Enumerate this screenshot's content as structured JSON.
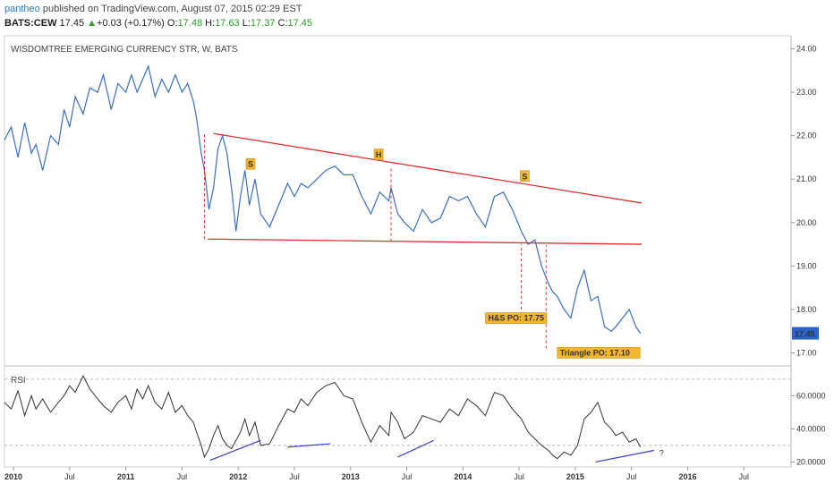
{
  "header": {
    "user": "pantheo",
    "published_text": "published on TradingView.com, August 07, 2015 02:29 EST",
    "symbol": "BATS:CEW",
    "last": "17.45",
    "change": "+0.03 (+0.17%)",
    "open_label": "O:",
    "open": "17.48",
    "high_label": "H:",
    "high": "17.63",
    "low_label": "L:",
    "low": "17.37",
    "close_label": "C:",
    "close": "17.45",
    "up_arrow_icon": "up-triangle-icon",
    "up_color": "#2a9d2a"
  },
  "chart_data": {
    "type": "line",
    "title": "WISDOMTREE EMERGING CURRENCY STR, W, BATS",
    "price_axis": {
      "ticks": [
        "24.00",
        "23.00",
        "22.00",
        "21.00",
        "20.00",
        "19.00",
        "18.00",
        "17.00"
      ],
      "ylim": [
        16.7,
        24.3
      ]
    },
    "last_price_badge": "17.45",
    "time_axis": {
      "labels": [
        {
          "t": 2010.0,
          "label": "2010"
        },
        {
          "t": 2010.5,
          "label": "Jul"
        },
        {
          "t": 2011.0,
          "label": "2011"
        },
        {
          "t": 2011.5,
          "label": "Jul"
        },
        {
          "t": 2012.0,
          "label": "2012"
        },
        {
          "t": 2012.5,
          "label": "Jul"
        },
        {
          "t": 2013.0,
          "label": "2013"
        },
        {
          "t": 2013.5,
          "label": "Jul"
        },
        {
          "t": 2014.0,
          "label": "2014"
        },
        {
          "t": 2014.5,
          "label": "Jul"
        },
        {
          "t": 2015.0,
          "label": "2015"
        },
        {
          "t": 2015.5,
          "label": "Jul"
        },
        {
          "t": 2016.0,
          "label": "2016"
        },
        {
          "t": 2016.5,
          "label": "Jul"
        }
      ],
      "xlim": [
        2009.92,
        2016.92
      ]
    },
    "price_series": {
      "color": "#3a6fc4",
      "t": [
        2009.92,
        2009.98,
        2010.04,
        2010.1,
        2010.16,
        2010.2,
        2010.26,
        2010.33,
        2010.4,
        2010.45,
        2010.5,
        2010.55,
        2010.62,
        2010.68,
        2010.75,
        2010.8,
        2010.87,
        2010.93,
        2011.0,
        2011.05,
        2011.1,
        2011.15,
        2011.2,
        2011.26,
        2011.32,
        2011.38,
        2011.44,
        2011.5,
        2011.55,
        2011.6,
        2011.63,
        2011.67,
        2011.7,
        2011.74,
        2011.78,
        2011.82,
        2011.86,
        2011.9,
        2011.94,
        2011.98,
        2012.02,
        2012.06,
        2012.1,
        2012.15,
        2012.2,
        2012.28,
        2012.36,
        2012.44,
        2012.5,
        2012.56,
        2012.62,
        2012.7,
        2012.78,
        2012.86,
        2012.94,
        2013.02,
        2013.1,
        2013.18,
        2013.26,
        2013.34,
        2013.36,
        2013.42,
        2013.48,
        2013.56,
        2013.64,
        2013.72,
        2013.8,
        2013.88,
        2013.96,
        2014.04,
        2014.12,
        2014.2,
        2014.28,
        2014.36,
        2014.44,
        2014.52,
        2014.58,
        2014.64,
        2014.7,
        2014.76,
        2014.8,
        2014.84,
        2014.9,
        2014.96,
        2015.02,
        2015.08,
        2015.14,
        2015.2,
        2015.26,
        2015.32,
        2015.36,
        2015.42,
        2015.48,
        2015.54,
        2015.58
      ],
      "values": [
        21.9,
        22.2,
        21.5,
        22.3,
        21.6,
        21.8,
        21.2,
        22.0,
        21.8,
        22.6,
        22.2,
        22.9,
        22.5,
        23.1,
        23.0,
        23.4,
        22.6,
        23.2,
        23.0,
        23.4,
        23.0,
        23.3,
        23.6,
        22.9,
        23.3,
        23.0,
        23.4,
        23.0,
        23.2,
        22.8,
        22.4,
        21.6,
        21.2,
        20.3,
        20.8,
        21.7,
        22.0,
        21.6,
        20.8,
        19.8,
        20.6,
        21.2,
        20.4,
        21.0,
        20.2,
        19.9,
        20.4,
        20.9,
        20.6,
        20.9,
        20.8,
        21.0,
        21.2,
        21.3,
        21.1,
        21.1,
        20.6,
        20.2,
        20.7,
        20.5,
        20.8,
        20.2,
        20.0,
        19.8,
        20.3,
        20.0,
        20.1,
        20.6,
        20.5,
        20.6,
        20.2,
        19.9,
        20.6,
        20.7,
        20.3,
        19.8,
        19.5,
        19.6,
        19.0,
        18.6,
        18.4,
        18.3,
        18.0,
        17.8,
        18.5,
        18.9,
        18.2,
        18.3,
        17.6,
        17.5,
        17.6,
        17.8,
        18.0,
        17.6,
        17.45
      ]
    },
    "rsi": {
      "label": "RSI",
      "ticks": [
        "60.0000",
        "40.0000",
        "20.0000"
      ],
      "ylim": [
        17,
        78
      ],
      "reference_levels": [
        70,
        30
      ],
      "t": [
        2009.92,
        2009.98,
        2010.04,
        2010.1,
        2010.16,
        2010.2,
        2010.26,
        2010.33,
        2010.4,
        2010.45,
        2010.5,
        2010.55,
        2010.62,
        2010.68,
        2010.75,
        2010.8,
        2010.87,
        2010.93,
        2011.0,
        2011.05,
        2011.1,
        2011.15,
        2011.2,
        2011.26,
        2011.32,
        2011.38,
        2011.44,
        2011.5,
        2011.55,
        2011.6,
        2011.63,
        2011.67,
        2011.7,
        2011.74,
        2011.78,
        2011.82,
        2011.86,
        2011.9,
        2011.94,
        2011.98,
        2012.02,
        2012.06,
        2012.1,
        2012.15,
        2012.2,
        2012.28,
        2012.36,
        2012.44,
        2012.5,
        2012.56,
        2012.62,
        2012.7,
        2012.78,
        2012.86,
        2012.94,
        2013.02,
        2013.1,
        2013.18,
        2013.26,
        2013.34,
        2013.36,
        2013.42,
        2013.48,
        2013.56,
        2013.64,
        2013.72,
        2013.8,
        2013.88,
        2013.96,
        2014.04,
        2014.12,
        2014.2,
        2014.28,
        2014.36,
        2014.44,
        2014.52,
        2014.58,
        2014.64,
        2014.7,
        2014.76,
        2014.8,
        2014.84,
        2014.9,
        2014.96,
        2015.02,
        2015.08,
        2015.14,
        2015.2,
        2015.26,
        2015.32,
        2015.36,
        2015.42,
        2015.48,
        2015.54,
        2015.58
      ],
      "values": [
        56,
        52,
        63,
        48,
        60,
        52,
        58,
        50,
        56,
        60,
        66,
        62,
        72,
        64,
        58,
        54,
        50,
        56,
        60,
        52,
        64,
        58,
        66,
        56,
        52,
        62,
        50,
        54,
        48,
        44,
        38,
        30,
        23,
        28,
        36,
        42,
        34,
        30,
        28,
        33,
        38,
        46,
        36,
        44,
        30,
        31,
        42,
        52,
        50,
        58,
        54,
        62,
        66,
        68,
        60,
        58,
        44,
        32,
        42,
        36,
        50,
        44,
        34,
        38,
        48,
        46,
        44,
        52,
        48,
        58,
        54,
        48,
        62,
        60,
        52,
        46,
        38,
        34,
        30,
        27,
        24,
        22,
        26,
        24,
        30,
        46,
        50,
        56,
        44,
        40,
        36,
        38,
        32,
        34,
        29
      ],
      "divergence_lines": [
        {
          "t1": 2011.75,
          "v1": 21,
          "t2": 2012.2,
          "v2": 33
        },
        {
          "t1": 2012.44,
          "v1": 29,
          "t2": 2012.82,
          "v2": 31
        },
        {
          "t1": 2013.42,
          "v1": 23,
          "t2": 2013.74,
          "v2": 33
        },
        {
          "t1": 2015.18,
          "v1": 20,
          "t2": 2015.7,
          "v2": 27
        }
      ],
      "question_mark": "?"
    },
    "annotations": {
      "triangle_upper": {
        "t1": 2011.78,
        "v1": 22.05,
        "t2": 2015.59,
        "v2": 20.45
      },
      "triangle_lower": {
        "t1": 2011.73,
        "v1": 19.62,
        "t2": 2015.59,
        "v2": 19.5
      },
      "hs_labels": [
        {
          "t": 2012.11,
          "v": 21.35,
          "text": "S"
        },
        {
          "t": 2013.25,
          "v": 21.57,
          "text": "H"
        },
        {
          "t": 2014.55,
          "v": 21.07,
          "text": "S"
        }
      ],
      "vertical_dashes": [
        {
          "t": 2011.7,
          "v1": 19.62,
          "v2": 22.1
        },
        {
          "t": 2013.36,
          "v1": 19.57,
          "v2": 21.3
        },
        {
          "t": 2014.52,
          "v1": 17.75,
          "v2": 19.5
        },
        {
          "t": 2014.74,
          "v1": 17.1,
          "v2": 19.48
        }
      ],
      "price_objectives": [
        {
          "t": 2014.2,
          "v": 17.8,
          "text": "H&S PO: 17.75"
        },
        {
          "t": 2014.84,
          "v": 17.0,
          "text": "Triangle PO: 17.10"
        }
      ],
      "line_color": "#e03030",
      "label_bg": "#f5b52e"
    }
  }
}
